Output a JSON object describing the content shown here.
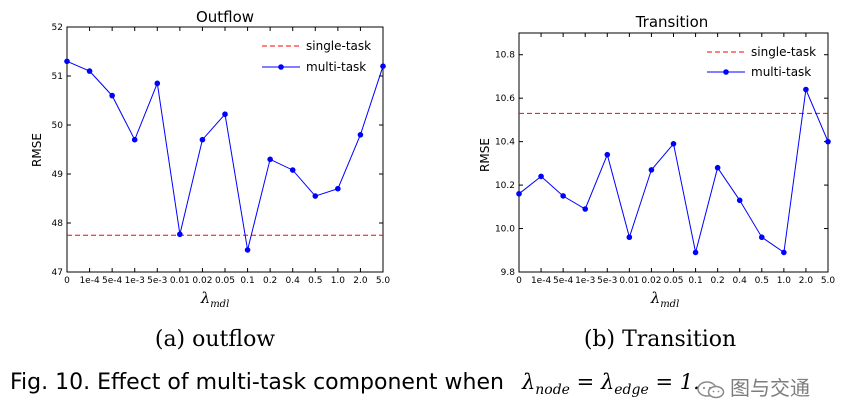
{
  "colors": {
    "multi_task": "#0000ff",
    "single_task": "#ff0000",
    "axis": "#000000"
  },
  "chart_data": [
    {
      "type": "line",
      "title": "Outflow",
      "xlabel": "λ",
      "xlabel_sub": "mdl",
      "ylabel": "RMSE",
      "categories": [
        "0",
        "1e-4",
        "5e-4",
        "1e-3",
        "5e-3",
        "0.01",
        "0.02",
        "0.05",
        "0.1",
        "0.2",
        "0.4",
        "0.5",
        "1.0",
        "2.0",
        "5.0"
      ],
      "ylim": [
        47,
        52
      ],
      "yticks": [
        47,
        48,
        49,
        50,
        51,
        52
      ],
      "ytick_labels": [
        "47",
        "48",
        "49",
        "50",
        "51",
        "52"
      ],
      "legend_position": "upper-right",
      "series": [
        {
          "name": "single-task",
          "style": "dashed",
          "color": "#ff0000",
          "values": [
            47.75,
            47.75,
            47.75,
            47.75,
            47.75,
            47.75,
            47.75,
            47.75,
            47.75,
            47.75,
            47.75,
            47.75,
            47.75,
            47.75,
            47.75
          ]
        },
        {
          "name": "multi-task",
          "style": "line-marker",
          "color": "#0000ff",
          "values": [
            51.3,
            51.1,
            50.6,
            49.7,
            50.85,
            47.77,
            49.7,
            50.22,
            47.45,
            49.3,
            49.08,
            48.55,
            48.7,
            49.8,
            51.2
          ]
        }
      ],
      "caption": "(a)  outflow"
    },
    {
      "type": "line",
      "title": "Transition",
      "xlabel": "λ",
      "xlabel_sub": "mdl",
      "ylabel": "RMSE",
      "categories": [
        "0",
        "1e-4",
        "5e-4",
        "1e-3",
        "5e-3",
        "0.01",
        "0.02",
        "0.05",
        "0.1",
        "0.2",
        "0.4",
        "0.5",
        "1.0",
        "2.0",
        "5.0"
      ],
      "ylim": [
        9.8,
        10.9
      ],
      "yticks": [
        9.8,
        10.0,
        10.2,
        10.4,
        10.6,
        10.8
      ],
      "ytick_labels": [
        "9.8",
        "10.0",
        "10.2",
        "10.4",
        "10.6",
        "10.8"
      ],
      "legend_position": "upper-right",
      "series": [
        {
          "name": "single-task",
          "style": "dashed",
          "color": "#ff0000",
          "values": [
            10.53,
            10.53,
            10.53,
            10.53,
            10.53,
            10.53,
            10.53,
            10.53,
            10.53,
            10.53,
            10.53,
            10.53,
            10.53,
            10.53,
            10.53
          ]
        },
        {
          "name": "multi-task",
          "style": "line-marker",
          "color": "#0000ff",
          "values": [
            10.16,
            10.24,
            10.15,
            10.09,
            10.34,
            9.96,
            10.27,
            10.39,
            9.89,
            10.28,
            10.13,
            9.96,
            9.89,
            10.64,
            10.4
          ]
        }
      ],
      "caption": "(b)  Transition"
    }
  ],
  "figure_caption": {
    "text": "Fig. 10. Effect of multi-task component when",
    "math": {
      "lambda": "λ",
      "node_sub": "node",
      "eq": "=",
      "edge_sub": "edge",
      "rhs": "1."
    }
  },
  "watermark": {
    "text": "图与交通",
    "icon": "wechat-icon"
  }
}
